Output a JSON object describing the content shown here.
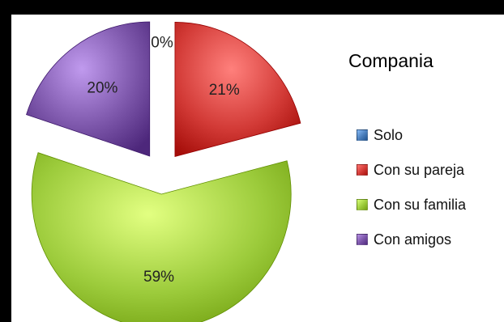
{
  "chart_data": {
    "type": "pie",
    "title": "Compania",
    "legend_position": "right",
    "exploded": true,
    "slices": [
      {
        "label": "Solo",
        "value": 0,
        "display": "0%",
        "color": "#4a7ebb"
      },
      {
        "label": "Con su pareja",
        "value": 21,
        "display": "21%",
        "color": "#d23a36"
      },
      {
        "label": "Con su familia",
        "value": 59,
        "display": "59%",
        "color": "#9ccb3b"
      },
      {
        "label": "Con amigos",
        "value": 20,
        "display": "20%",
        "color": "#7a54a8"
      }
    ]
  }
}
